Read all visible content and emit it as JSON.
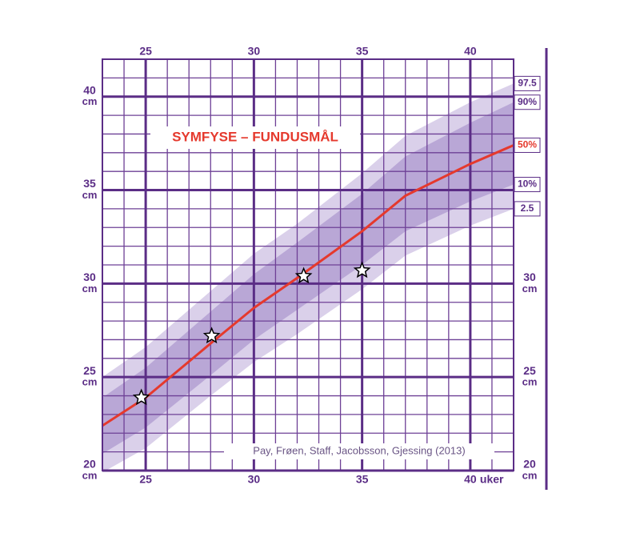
{
  "chart_data": {
    "type": "line",
    "title": "SYMFYSE – FUNDUSMÅL",
    "source": "Pay, Frøen, Staff, Jacobsson, Gjessing (2013)",
    "x_unit": "uker",
    "y_unit": "cm",
    "x": [
      23,
      25,
      28,
      30,
      32,
      35,
      37,
      40,
      42
    ],
    "series": [
      {
        "name": "2.5",
        "color": "#dad0ea",
        "values": [
          19.9,
          21.2,
          24.0,
          25.8,
          27.3,
          29.7,
          31.5,
          33.1,
          34.0
        ]
      },
      {
        "name": "10%",
        "color": "#b9a7d6",
        "values": [
          20.9,
          22.3,
          25.1,
          27.0,
          28.6,
          31.0,
          32.8,
          34.4,
          35.3
        ]
      },
      {
        "name": "50%",
        "color": "#e5392d",
        "values": [
          22.4,
          23.9,
          26.8,
          28.7,
          30.3,
          32.8,
          34.7,
          36.4,
          37.4
        ]
      },
      {
        "name": "90%",
        "color": "#b9a7d6",
        "values": [
          23.9,
          25.5,
          28.5,
          30.5,
          32.2,
          34.8,
          36.8,
          38.6,
          39.7
        ]
      },
      {
        "name": "97.5",
        "color": "#dad0ea",
        "values": [
          25.0,
          26.6,
          29.6,
          31.6,
          33.2,
          35.9,
          37.9,
          39.7,
          40.7
        ]
      }
    ],
    "markers": {
      "x": [
        24.8,
        28.05,
        32.3,
        35.0
      ],
      "values": [
        23.9,
        27.2,
        30.4,
        30.7
      ]
    },
    "xlim": [
      23,
      42
    ],
    "ylim": [
      20,
      42
    ],
    "xticks": [
      25,
      30,
      35,
      40
    ],
    "yticks": [
      20,
      25,
      30,
      35,
      40
    ],
    "xminorticks": [
      23,
      24,
      25,
      26,
      27,
      28,
      29,
      30,
      31,
      32,
      33,
      34,
      35,
      36,
      37,
      38,
      39,
      40,
      41,
      42
    ],
    "yminorticks": [
      20,
      21,
      22,
      23,
      24,
      25,
      26,
      27,
      28,
      29,
      30,
      31,
      32,
      33,
      34,
      35,
      36,
      37,
      38,
      39,
      40,
      41,
      42
    ],
    "grid": true
  }
}
